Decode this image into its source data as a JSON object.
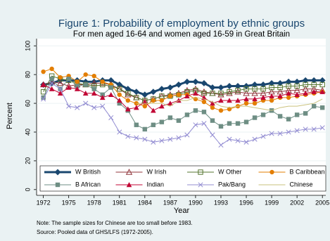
{
  "chart_data": {
    "type": "line",
    "title": "Figure 1: Probability of employment by ethnic groups",
    "subtitle": "For men aged 16-64 and women aged 16-59 in Great Britain",
    "xlabel": "Year",
    "ylabel": "Percent",
    "notes": [
      "Note: The sample sizes for Chinese are too small before 1983.",
      "Source: Pooled data of GHS/LFS (1972-2005)."
    ],
    "x": [
      1972,
      1973,
      1974,
      1975,
      1976,
      1977,
      1978,
      1979,
      1980,
      1981,
      1982,
      1983,
      1984,
      1985,
      1986,
      1987,
      1988,
      1989,
      1990,
      1991,
      1992,
      1993,
      1994,
      1995,
      1996,
      1997,
      1998,
      1999,
      2000,
      2001,
      2002,
      2003,
      2004,
      2005
    ],
    "xlim": [
      1971.2,
      2005.4
    ],
    "xticks": [
      1972,
      1975,
      1978,
      1981,
      1984,
      1987,
      1990,
      1993,
      1996,
      1999,
      2002,
      2005
    ],
    "ylim": [
      -4,
      105
    ],
    "yticks": [
      0,
      20,
      40,
      60,
      80,
      100
    ],
    "grid": true,
    "legend": "bottom",
    "series": [
      {
        "name": "W British",
        "color": "#1a476f",
        "marker": "diamond",
        "width": 3,
        "values": [
          73,
          74,
          76,
          76,
          76,
          75,
          75,
          76,
          76,
          73,
          70,
          68,
          66,
          68,
          70,
          71,
          73,
          75,
          75,
          74,
          71,
          71,
          72,
          72,
          72,
          73,
          73,
          74,
          74,
          75,
          75,
          76,
          76,
          76
        ]
      },
      {
        "name": "W Irish",
        "color": "#90353b",
        "marker": "triangle-open",
        "width": 1,
        "values": [
          73,
          75,
          74,
          72,
          73,
          73,
          74,
          74,
          73,
          70,
          66,
          64,
          62,
          63,
          65,
          66,
          67,
          69,
          70,
          68,
          67,
          66,
          67,
          68,
          67,
          67,
          67,
          68,
          68,
          69,
          69,
          70,
          70,
          69
        ]
      },
      {
        "name": "W Other",
        "color": "#55752f",
        "marker": "square-open",
        "width": 1,
        "values": [
          68,
          79,
          77,
          76,
          74,
          73,
          72,
          73,
          72,
          70,
          67,
          64,
          62,
          63,
          65,
          65,
          66,
          68,
          69,
          67,
          67,
          67,
          68,
          69,
          70,
          70,
          70,
          71,
          71,
          72,
          72,
          73,
          73,
          73
        ]
      },
      {
        "name": "B Caribbean",
        "color": "#e37e00",
        "marker": "circle",
        "width": 1,
        "values": [
          82,
          84,
          78,
          79,
          75,
          80,
          79,
          75,
          73,
          66,
          62,
          60,
          58,
          62,
          62,
          65,
          66,
          66,
          63,
          61,
          57,
          55,
          56,
          58,
          60,
          60,
          62,
          62,
          64,
          64,
          65,
          66,
          67,
          68
        ]
      },
      {
        "name": "B African",
        "color": "#6e8e84",
        "marker": "square",
        "width": 1,
        "values": [
          64,
          77,
          70,
          77,
          72,
          73,
          70,
          66,
          71,
          60,
          55,
          45,
          42,
          45,
          47,
          50,
          48,
          52,
          55,
          54,
          48,
          44,
          46,
          46,
          47,
          50,
          52,
          55,
          51,
          49,
          52,
          53,
          58,
          57
        ]
      },
      {
        "name": "Indian",
        "color": "#c10534",
        "marker": "triangle",
        "width": 1,
        "values": [
          73,
          70,
          67,
          71,
          70,
          67,
          67,
          64,
          66,
          62,
          56,
          57,
          61,
          55,
          58,
          60,
          62,
          65,
          67,
          64,
          60,
          62,
          62,
          62,
          63,
          63,
          64,
          65,
          65,
          67,
          66,
          67,
          68,
          68
        ]
      },
      {
        "name": "Pak/Bang",
        "color": "#938dd2",
        "marker": "x",
        "width": 1,
        "values": [
          63,
          74,
          70,
          58,
          57,
          60,
          57,
          58,
          50,
          40,
          37,
          36,
          35,
          33,
          34,
          35,
          36,
          38,
          45,
          46,
          38,
          31,
          35,
          34,
          33,
          35,
          37,
          39,
          39,
          40,
          41,
          42,
          42,
          43
        ]
      },
      {
        "name": "Chinese",
        "color": "#cac27e",
        "marker": "none",
        "width": 1,
        "values": [
          null,
          null,
          null,
          null,
          null,
          null,
          null,
          null,
          null,
          null,
          null,
          60,
          60,
          60,
          60,
          58,
          62,
          62,
          64,
          63,
          61,
          58,
          57,
          58,
          58,
          57,
          56,
          55,
          57,
          58,
          58,
          59,
          60,
          63
        ]
      }
    ]
  }
}
